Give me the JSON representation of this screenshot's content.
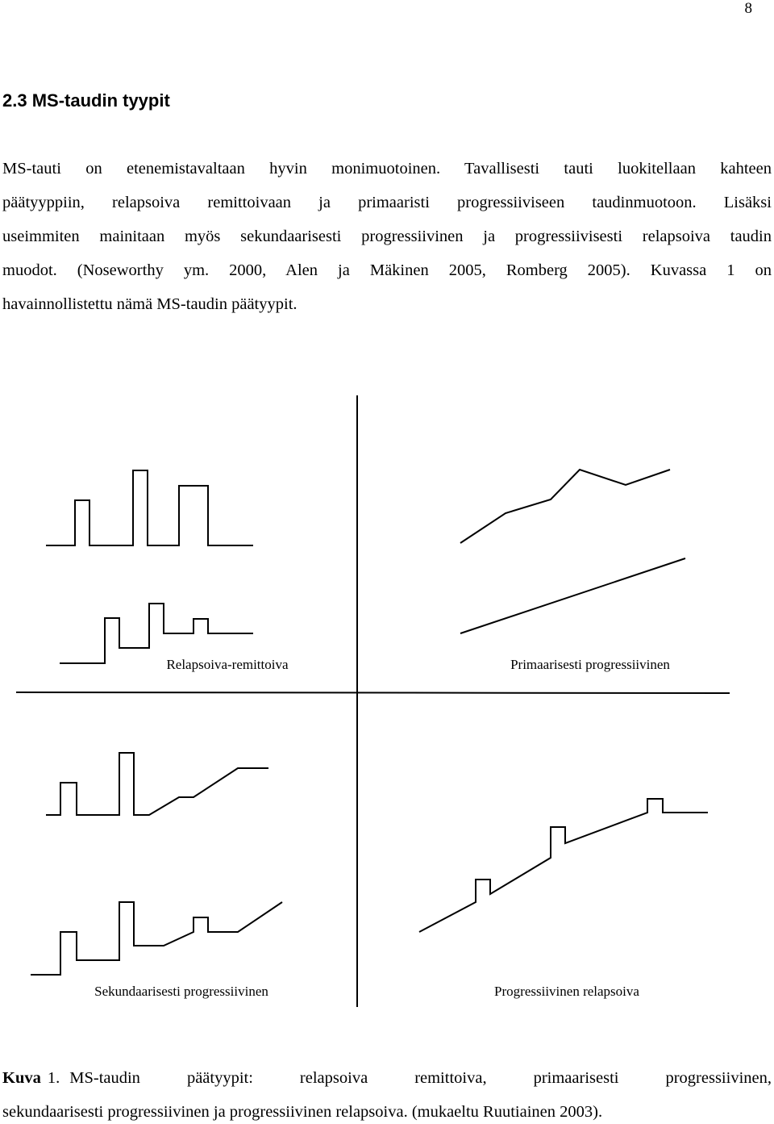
{
  "page_number": "8",
  "heading": "2.3 MS-taudin tyypit",
  "paragraph": [
    "MS-tauti on etenemistavaltaan hyvin monimuotoinen. Tavallisesti tauti luokitellaan kahteen",
    "päätyyppiin, relapsoiva remittoivaan ja primaaristi progressiiviseen taudinmuotoon. Lisäksi",
    "useimmiten mainitaan myös sekundaarisesti progressiivinen ja progressiivisesti relapsoiva taudin",
    "muodot. (Noseworthy ym. 2000, Alen ja Mäkinen 2005, Romberg 2005). Kuvassa 1 on",
    "havainnollistettu nämä MS-taudin päätyypit."
  ],
  "figure": {
    "labels": [
      "Relapsoiva-remittoiva",
      "Primaarisesti progressiivinen",
      "Sekundaarisesti progressiivinen",
      "Progressiivinen relapsoiva"
    ]
  },
  "caption": {
    "label": "Kuva",
    "number": "1.",
    "lines": [
      "MS-taudin päätyypit: relapsoiva remittoiva, primaarisesti progressiivinen,",
      "sekundaarisesti progressiivinen ja progressiivinen relapsoiva. (mukaeltu Ruutiainen 2003)."
    ]
  }
}
